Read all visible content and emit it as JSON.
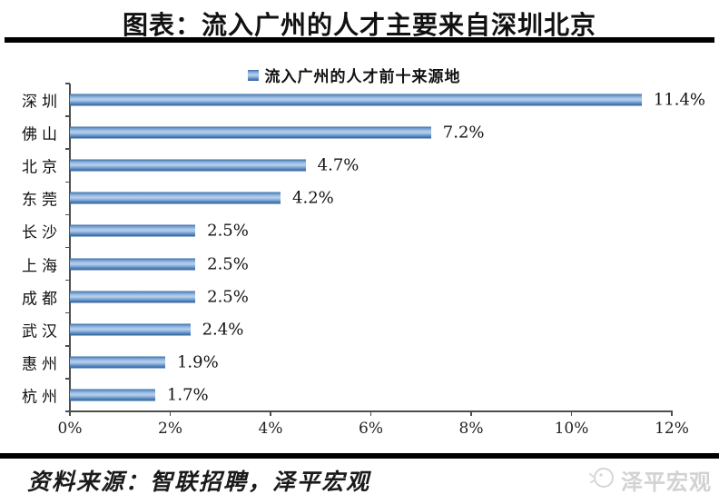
{
  "header": {
    "title": "图表：流入广州的人才主要来自深圳北京"
  },
  "legend": {
    "label": "流入广州的人才前十来源地",
    "marker_color": "#4f81bd"
  },
  "chart_data": {
    "type": "bar",
    "orientation": "horizontal",
    "title": "流入广州的人才前十来源地",
    "categories": [
      "深圳",
      "佛山",
      "北京",
      "东莞",
      "长沙",
      "上海",
      "成都",
      "武汉",
      "惠州",
      "杭州"
    ],
    "values": [
      11.4,
      7.2,
      4.7,
      4.2,
      2.5,
      2.5,
      2.5,
      2.4,
      1.9,
      1.7
    ],
    "value_labels": [
      "11.4%",
      "7.2%",
      "4.7%",
      "4.2%",
      "2.5%",
      "2.5%",
      "2.5%",
      "2.4%",
      "1.9%",
      "1.7%"
    ],
    "xlabel": "",
    "ylabel": "",
    "xlim": [
      0,
      12
    ],
    "x_ticks": [
      "0%",
      "2%",
      "4%",
      "6%",
      "8%",
      "10%",
      "12%"
    ],
    "grid": false,
    "legend_position": "top",
    "bar_color": "#4f81bd",
    "bar_highlight": "#aac8e8",
    "axis_color": "#4d4d4d"
  },
  "footer": {
    "source": "资料来源：智联招聘，泽平宏观",
    "watermark": "泽平宏观"
  }
}
